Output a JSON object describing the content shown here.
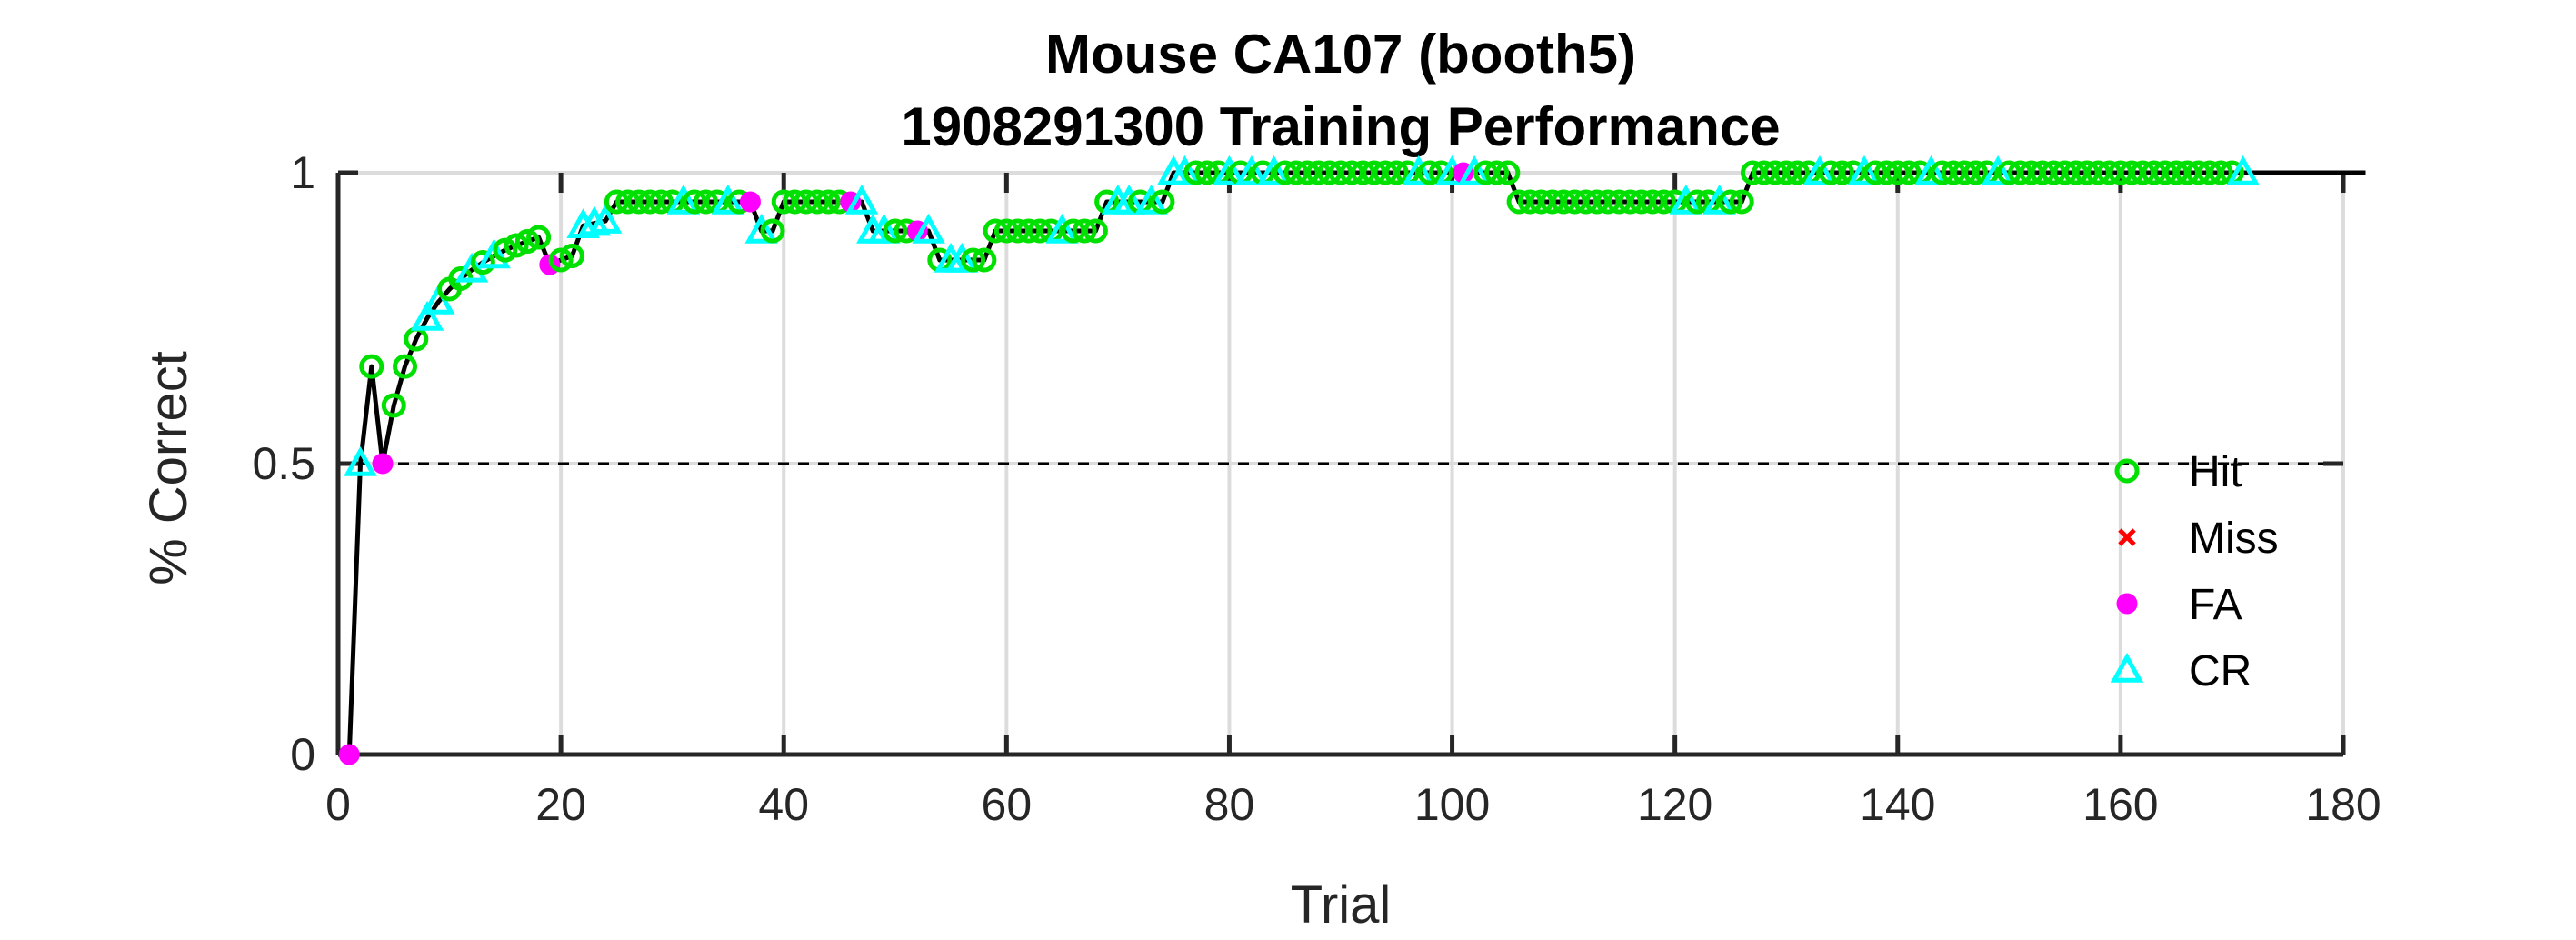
{
  "chart_data": {
    "type": "line",
    "title": [
      "Mouse CA107 (booth5)",
      "1908291300 Training Performance"
    ],
    "xlabel": "Trial",
    "ylabel": "% Correct",
    "xlim": [
      0,
      180
    ],
    "ylim": [
      0,
      1
    ],
    "xticks": [
      0,
      20,
      40,
      60,
      80,
      100,
      120,
      140,
      160,
      180
    ],
    "yticks": [
      0,
      0.5,
      1
    ],
    "xtick_labels": [
      "0",
      "20",
      "40",
      "60",
      "80",
      "100",
      "120",
      "140",
      "160",
      "180"
    ],
    "ytick_labels": [
      "0",
      "0.5",
      "1"
    ],
    "grid": true,
    "chance_level": 0.5,
    "legend_position": "right",
    "colors": {
      "line": "#000000",
      "hit": "#00e000",
      "miss": "#ff0000",
      "fa": "#ff00ff",
      "cr": "#00ffff",
      "grid": "#dcdcdc",
      "axis": "#262626"
    },
    "legend": [
      {
        "key": "hit",
        "label": "Hit",
        "marker": "circle"
      },
      {
        "key": "miss",
        "label": "Miss",
        "marker": "x"
      },
      {
        "key": "fa",
        "label": "FA",
        "marker": "dot"
      },
      {
        "key": "cr",
        "label": "CR",
        "marker": "triangle"
      }
    ],
    "outcomes": "FCHFHHHCCHHCHCHHHHFHHCCCHHHHHHCHHHCHFCHHHHHHHFCCCHHFCHCCHHHHHHHHCHHHHCCHCHCCHHHCHCHCHHHHHHHHHHHHCHHCFCHHHHHHHHHHHHHHHHHHCHHCHHHHHHHHCHHHCHHHHHCHHHHHCHHHHHHHHHHHHHHHHHHHHHC",
    "y": [
      0.0,
      0.5,
      0.667,
      0.5,
      0.6,
      0.667,
      0.714,
      0.75,
      0.778,
      0.8,
      0.818,
      0.833,
      0.846,
      0.857,
      0.867,
      0.875,
      0.882,
      0.889,
      0.842,
      0.85,
      0.857,
      0.909,
      0.913,
      0.917,
      0.95,
      0.95,
      0.95,
      0.95,
      0.95,
      0.95,
      0.95,
      0.95,
      0.95,
      0.95,
      0.95,
      0.95,
      0.95,
      0.9,
      0.9,
      0.95,
      0.95,
      0.95,
      0.95,
      0.95,
      0.95,
      0.95,
      0.95,
      0.9,
      0.9,
      0.9,
      0.9,
      0.9,
      0.9,
      0.85,
      0.85,
      0.85,
      0.85,
      0.85,
      0.9,
      0.9,
      0.9,
      0.9,
      0.9,
      0.9,
      0.9,
      0.9,
      0.9,
      0.9,
      0.95,
      0.95,
      0.95,
      0.95,
      0.95,
      0.95,
      1.0,
      1.0,
      1.0,
      1.0,
      1.0,
      1.0,
      1.0,
      1.0,
      1.0,
      1.0,
      1.0,
      1.0,
      1.0,
      1.0,
      1.0,
      1.0,
      1.0,
      1.0,
      1.0,
      1.0,
      1.0,
      1.0,
      1.0,
      1.0,
      1.0,
      1.0,
      1.0,
      1.0,
      1.0,
      1.0,
      1.0,
      0.95,
      0.95,
      0.95,
      0.95,
      0.95,
      0.95,
      0.95,
      0.95,
      0.95,
      0.95,
      0.95,
      0.95,
      0.95,
      0.95,
      0.95,
      0.95,
      0.95,
      0.95,
      0.95,
      0.95,
      0.95,
      1.0,
      1.0,
      1.0,
      1.0,
      1.0,
      1.0,
      1.0,
      1.0,
      1.0,
      1.0,
      1.0,
      1.0,
      1.0,
      1.0,
      1.0,
      1.0,
      1.0,
      1.0,
      1.0,
      1.0,
      1.0,
      1.0,
      1.0,
      1.0,
      1.0,
      1.0,
      1.0,
      1.0,
      1.0,
      1.0,
      1.0,
      1.0,
      1.0,
      1.0,
      1.0,
      1.0,
      1.0,
      1.0,
      1.0,
      1.0,
      1.0,
      1.0,
      1.0,
      1.0,
      1.0,
      1.0,
      1.0,
      1.0,
      1.0,
      1.0,
      1.0,
      1.0,
      1.0,
      1.0,
      1.0,
      1.0
    ]
  }
}
